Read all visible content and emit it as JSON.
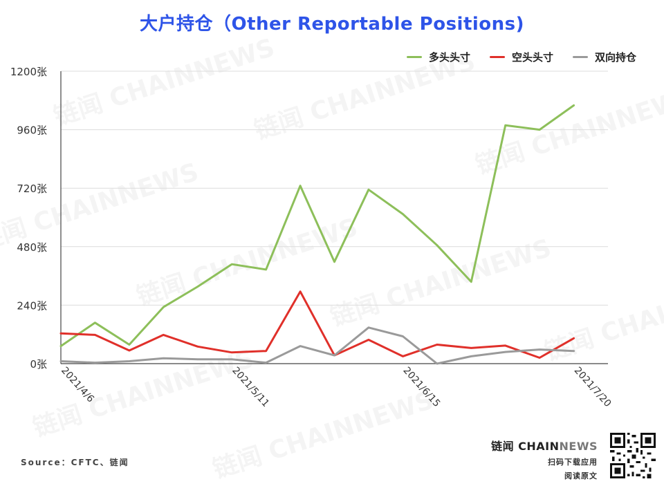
{
  "title": "大户持仓（Other Reportable Positions)",
  "source": "Source：CFTC、链闻",
  "brand": {
    "name_main": "链闻 CHAIN",
    "name_accent": "NEWS",
    "line1": "扫码下载应用",
    "line2": "阅读原文"
  },
  "watermark": "链闻 CHAINNEWS",
  "chart_data": {
    "type": "line",
    "title": "大户持仓（Other Reportable Positions)",
    "xlabel": "",
    "ylabel": "",
    "ylim": [
      0,
      1200
    ],
    "yticks": [
      0,
      240,
      480,
      720,
      960,
      1200
    ],
    "ytick_labels": [
      "0张",
      "240张",
      "480张",
      "720张",
      "960张",
      "1200张"
    ],
    "x_dates": [
      "2021/4/6",
      "2021/4/13",
      "2021/4/20",
      "2021/4/27",
      "2021/5/4",
      "2021/5/11",
      "2021/5/18",
      "2021/5/25",
      "2021/6/1",
      "2021/6/8",
      "2021/6/15",
      "2021/6/22",
      "2021/6/29",
      "2021/7/6",
      "2021/7/13",
      "2021/7/20",
      "2021/7/27"
    ],
    "x_tick_labels": [
      {
        "index": 0,
        "label": "2021/4/6"
      },
      {
        "index": 5,
        "label": "2021/5/11"
      },
      {
        "index": 10,
        "label": "2021/6/15"
      },
      {
        "index": 15,
        "label": "2021/7/20"
      }
    ],
    "legend_position": "top-right",
    "grid": true,
    "series": [
      {
        "name": "多头头寸",
        "color": "#8dbf5a",
        "values": [
          72,
          168,
          78,
          232,
          316,
          408,
          386,
          730,
          418,
          714,
          614,
          486,
          336,
          978,
          960,
          1060,
          null
        ]
      },
      {
        "name": "空头头寸",
        "color": "#e0302a",
        "values": [
          124,
          118,
          54,
          118,
          70,
          46,
          52,
          296,
          34,
          98,
          30,
          78,
          64,
          74,
          24,
          104,
          null
        ]
      },
      {
        "name": "双向持仓",
        "color": "#9a9a9a",
        "values": [
          10,
          4,
          10,
          22,
          18,
          18,
          4,
          72,
          34,
          148,
          112,
          0,
          30,
          48,
          58,
          52,
          null
        ]
      }
    ]
  }
}
